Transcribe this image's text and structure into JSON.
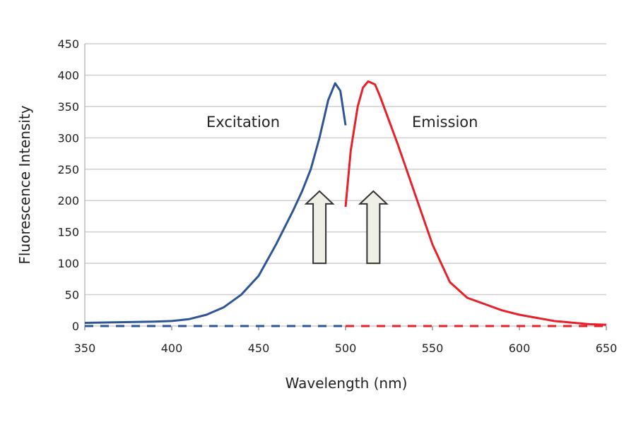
{
  "chart_data": {
    "type": "line",
    "title": "",
    "xlabel": "Wavelength (nm)",
    "ylabel": "Fluorescence Intensity",
    "xlim": [
      350,
      650
    ],
    "ylim": [
      0,
      450
    ],
    "xticks": [
      350,
      400,
      450,
      500,
      550,
      600,
      650
    ],
    "yticks": [
      0,
      50,
      100,
      150,
      200,
      250,
      300,
      350,
      400,
      450
    ],
    "grid": "horizontal",
    "colors": {
      "excitation": "#2f5597",
      "emission": "#e8202a",
      "arrow_fill": "#f0efe6"
    },
    "annotations": [
      {
        "text": "Excitation",
        "series": "excitation"
      },
      {
        "text": "Emission",
        "series": "emission"
      }
    ],
    "arrows": [
      {
        "x": 485,
        "y_from": 100,
        "y_to": 215
      },
      {
        "x": 516,
        "y_from": 100,
        "y_to": 215
      }
    ],
    "series": [
      {
        "key": "excitation",
        "x": [
          350,
          370,
          390,
          400,
          410,
          420,
          430,
          440,
          450,
          460,
          470,
          475,
          480,
          485,
          490,
          494,
          497,
          500
        ],
        "y": [
          5,
          6,
          7,
          8,
          11,
          18,
          30,
          50,
          80,
          130,
          185,
          215,
          250,
          300,
          360,
          387,
          375,
          320
        ]
      },
      {
        "key": "emission",
        "x": [
          500,
          503,
          507,
          510,
          513,
          517,
          520,
          530,
          540,
          550,
          560,
          570,
          580,
          590,
          600,
          620,
          640,
          650
        ],
        "y": [
          190,
          280,
          350,
          380,
          390,
          385,
          365,
          290,
          210,
          130,
          70,
          45,
          35,
          25,
          18,
          8,
          3,
          2
        ]
      },
      {
        "key": "excitation-baseline",
        "style": "dashed",
        "x": [
          350,
          500
        ],
        "y": [
          0,
          0
        ]
      },
      {
        "key": "emission-baseline",
        "style": "dashed",
        "x": [
          500,
          650
        ],
        "y": [
          0,
          0
        ]
      }
    ]
  }
}
